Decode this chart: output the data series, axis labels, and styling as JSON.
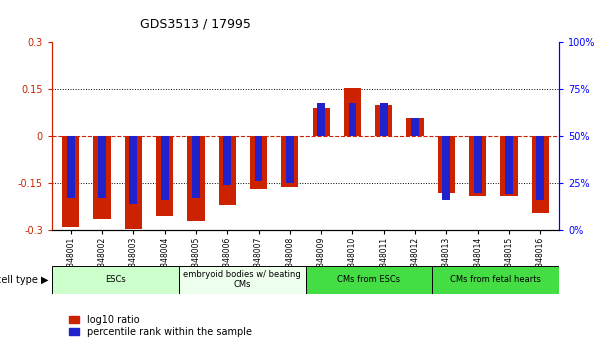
{
  "title": "GDS3513 / 17995",
  "samples": [
    "GSM348001",
    "GSM348002",
    "GSM348003",
    "GSM348004",
    "GSM348005",
    "GSM348006",
    "GSM348007",
    "GSM348008",
    "GSM348009",
    "GSM348010",
    "GSM348011",
    "GSM348012",
    "GSM348013",
    "GSM348014",
    "GSM348015",
    "GSM348016"
  ],
  "log10_ratio": [
    -0.29,
    -0.265,
    -0.295,
    -0.255,
    -0.27,
    -0.22,
    -0.17,
    -0.163,
    0.09,
    0.155,
    0.1,
    0.06,
    -0.18,
    -0.19,
    -0.19,
    -0.245
  ],
  "percentile_rank": [
    17,
    17,
    14,
    16,
    17,
    24,
    26,
    25,
    68,
    68,
    68,
    60,
    16,
    20,
    19,
    16
  ],
  "cell_types": [
    {
      "label": "ESCs",
      "start": 0,
      "end": 4,
      "color": "#ccffcc"
    },
    {
      "label": "embryoid bodies w/ beating\nCMs",
      "start": 4,
      "end": 8,
      "color": "#eeffee"
    },
    {
      "label": "CMs from ESCs",
      "start": 8,
      "end": 12,
      "color": "#44dd44"
    },
    {
      "label": "CMs from fetal hearts",
      "start": 12,
      "end": 16,
      "color": "#44dd44"
    }
  ],
  "ylim_left": [
    -0.3,
    0.3
  ],
  "ylim_right": [
    0,
    100
  ],
  "yticks_left": [
    -0.3,
    -0.15,
    0,
    0.15,
    0.3
  ],
  "yticks_right": [
    0,
    25,
    50,
    75,
    100
  ],
  "ytick_labels_left": [
    "-0.3",
    "-0.15",
    "0",
    "0.15",
    "0.3"
  ],
  "ytick_labels_right": [
    "0%",
    "25%",
    "50%",
    "75%",
    "100%"
  ],
  "bar_color_red": "#cc2200",
  "bar_color_blue": "#2222cc",
  "bar_width": 0.55,
  "blue_bar_width": 0.25,
  "grid_color": "black",
  "zero_line_color": "#cc2200",
  "bg_color": "white",
  "plot_bg": "white",
  "cell_type_label": "cell type",
  "legend_red": "log10 ratio",
  "legend_blue": "percentile rank within the sample"
}
